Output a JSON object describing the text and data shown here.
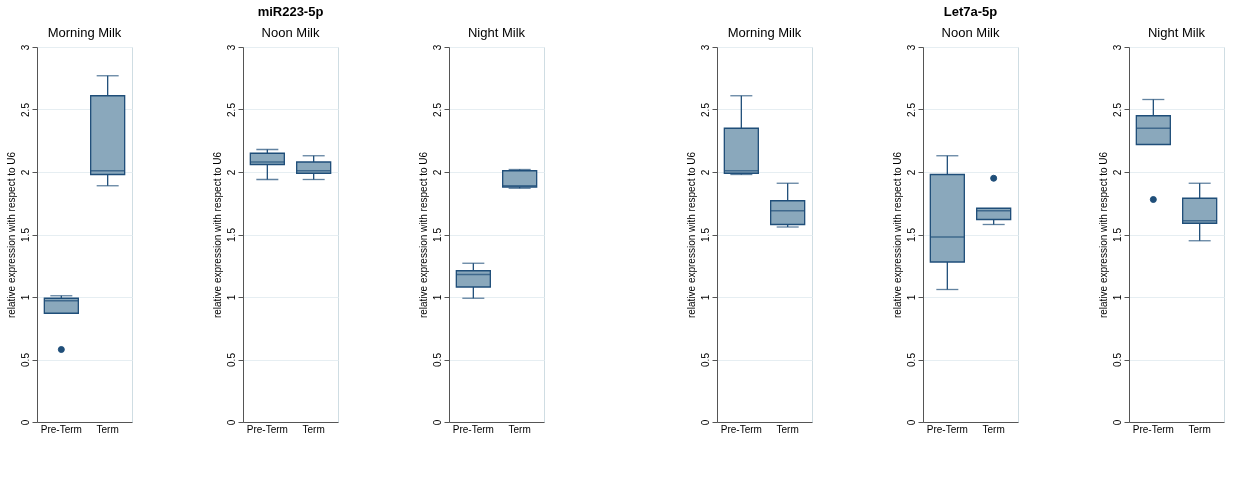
{
  "chart_data": [
    {
      "type": "box",
      "title": "Morning Milk",
      "ylabel": "relative expression with respect to U6",
      "categories": [
        "Pre-Term",
        "Term"
      ],
      "ylim": [
        0,
        3
      ],
      "yticks": [
        0,
        0.5,
        1,
        1.5,
        2,
        2.5,
        3
      ],
      "grid": "y",
      "series": [
        {
          "color": "#8aa8bc",
          "boxes": [
            {
              "low": 0.87,
              "q1": 0.87,
              "median": 0.97,
              "q3": 0.99,
              "high": 1.01,
              "outliers": [
                0.58
              ]
            },
            {
              "low": 1.89,
              "q1": 1.98,
              "median": 2.01,
              "q3": 2.61,
              "high": 2.77
            }
          ]
        }
      ]
    },
    {
      "type": "box",
      "title": "Noon Milk",
      "annotations": [
        "miR223-5p"
      ],
      "ylabel": "relative expression with respect to U6",
      "categories": [
        "Pre-Term",
        "Term"
      ],
      "ylim": [
        0,
        3
      ],
      "yticks": [
        0,
        0.5,
        1,
        1.5,
        2,
        2.5,
        3
      ],
      "grid": "y",
      "series": [
        {
          "color": "#8aa8bc",
          "boxes": [
            {
              "low": 1.94,
              "q1": 2.06,
              "median": 2.08,
              "q3": 2.15,
              "high": 2.18
            },
            {
              "low": 1.94,
              "q1": 1.99,
              "median": 2.01,
              "q3": 2.08,
              "high": 2.13
            }
          ]
        }
      ]
    },
    {
      "type": "box",
      "title": "Night Milk",
      "ylabel": "relative expression with respect to U6",
      "categories": [
        "Pre-Term",
        "Term"
      ],
      "ylim": [
        0,
        3
      ],
      "yticks": [
        0,
        0.5,
        1,
        1.5,
        2,
        2.5,
        3
      ],
      "grid": "y",
      "series": [
        {
          "color": "#8aa8bc",
          "boxes": [
            {
              "low": 0.99,
              "q1": 1.08,
              "median": 1.18,
              "q3": 1.21,
              "high": 1.27
            },
            {
              "low": 1.87,
              "q1": 1.88,
              "median": 1.89,
              "q3": 2.01,
              "high": 2.02
            }
          ]
        }
      ]
    },
    {
      "type": "box",
      "title": "Morning Milk",
      "ylabel": "relative expression with respect to U6",
      "categories": [
        "Pre-Term",
        "Term"
      ],
      "ylim": [
        0,
        3
      ],
      "yticks": [
        0,
        0.5,
        1,
        1.5,
        2,
        2.5,
        3
      ],
      "grid": "y",
      "series": [
        {
          "color": "#8aa8bc",
          "boxes": [
            {
              "low": 1.98,
              "q1": 1.99,
              "median": 2.01,
              "q3": 2.35,
              "high": 2.61
            },
            {
              "low": 1.56,
              "q1": 1.58,
              "median": 1.69,
              "q3": 1.77,
              "high": 1.91
            }
          ]
        }
      ]
    },
    {
      "type": "box",
      "title": "Noon Milk",
      "annotations": [
        "Let7a-5p"
      ],
      "ylabel": "relative expression with respect to U6",
      "categories": [
        "Pre-Term",
        "Term"
      ],
      "ylim": [
        0,
        3
      ],
      "yticks": [
        0,
        0.5,
        1,
        1.5,
        2,
        2.5,
        3
      ],
      "grid": "y",
      "series": [
        {
          "color": "#8aa8bc",
          "boxes": [
            {
              "low": 1.06,
              "q1": 1.28,
              "median": 1.48,
              "q3": 1.98,
              "high": 2.13
            },
            {
              "low": 1.58,
              "q1": 1.62,
              "median": 1.69,
              "q3": 1.71,
              "high": 1.71,
              "outliers": [
                1.95
              ]
            }
          ]
        }
      ]
    },
    {
      "type": "box",
      "title": "Night Milk",
      "ylabel": "relative expression with respect to U6",
      "categories": [
        "Pre-Term",
        "Term"
      ],
      "ylim": [
        0,
        3
      ],
      "yticks": [
        0,
        0.5,
        1,
        1.5,
        2,
        2.5,
        3
      ],
      "grid": "y",
      "series": [
        {
          "color": "#8aa8bc",
          "boxes": [
            {
              "low": 2.22,
              "q1": 2.22,
              "median": 2.35,
              "q3": 2.45,
              "high": 2.58,
              "outliers": [
                1.78
              ]
            },
            {
              "low": 1.45,
              "q1": 1.59,
              "median": 1.61,
              "q3": 1.79,
              "high": 1.91
            }
          ]
        }
      ]
    }
  ]
}
